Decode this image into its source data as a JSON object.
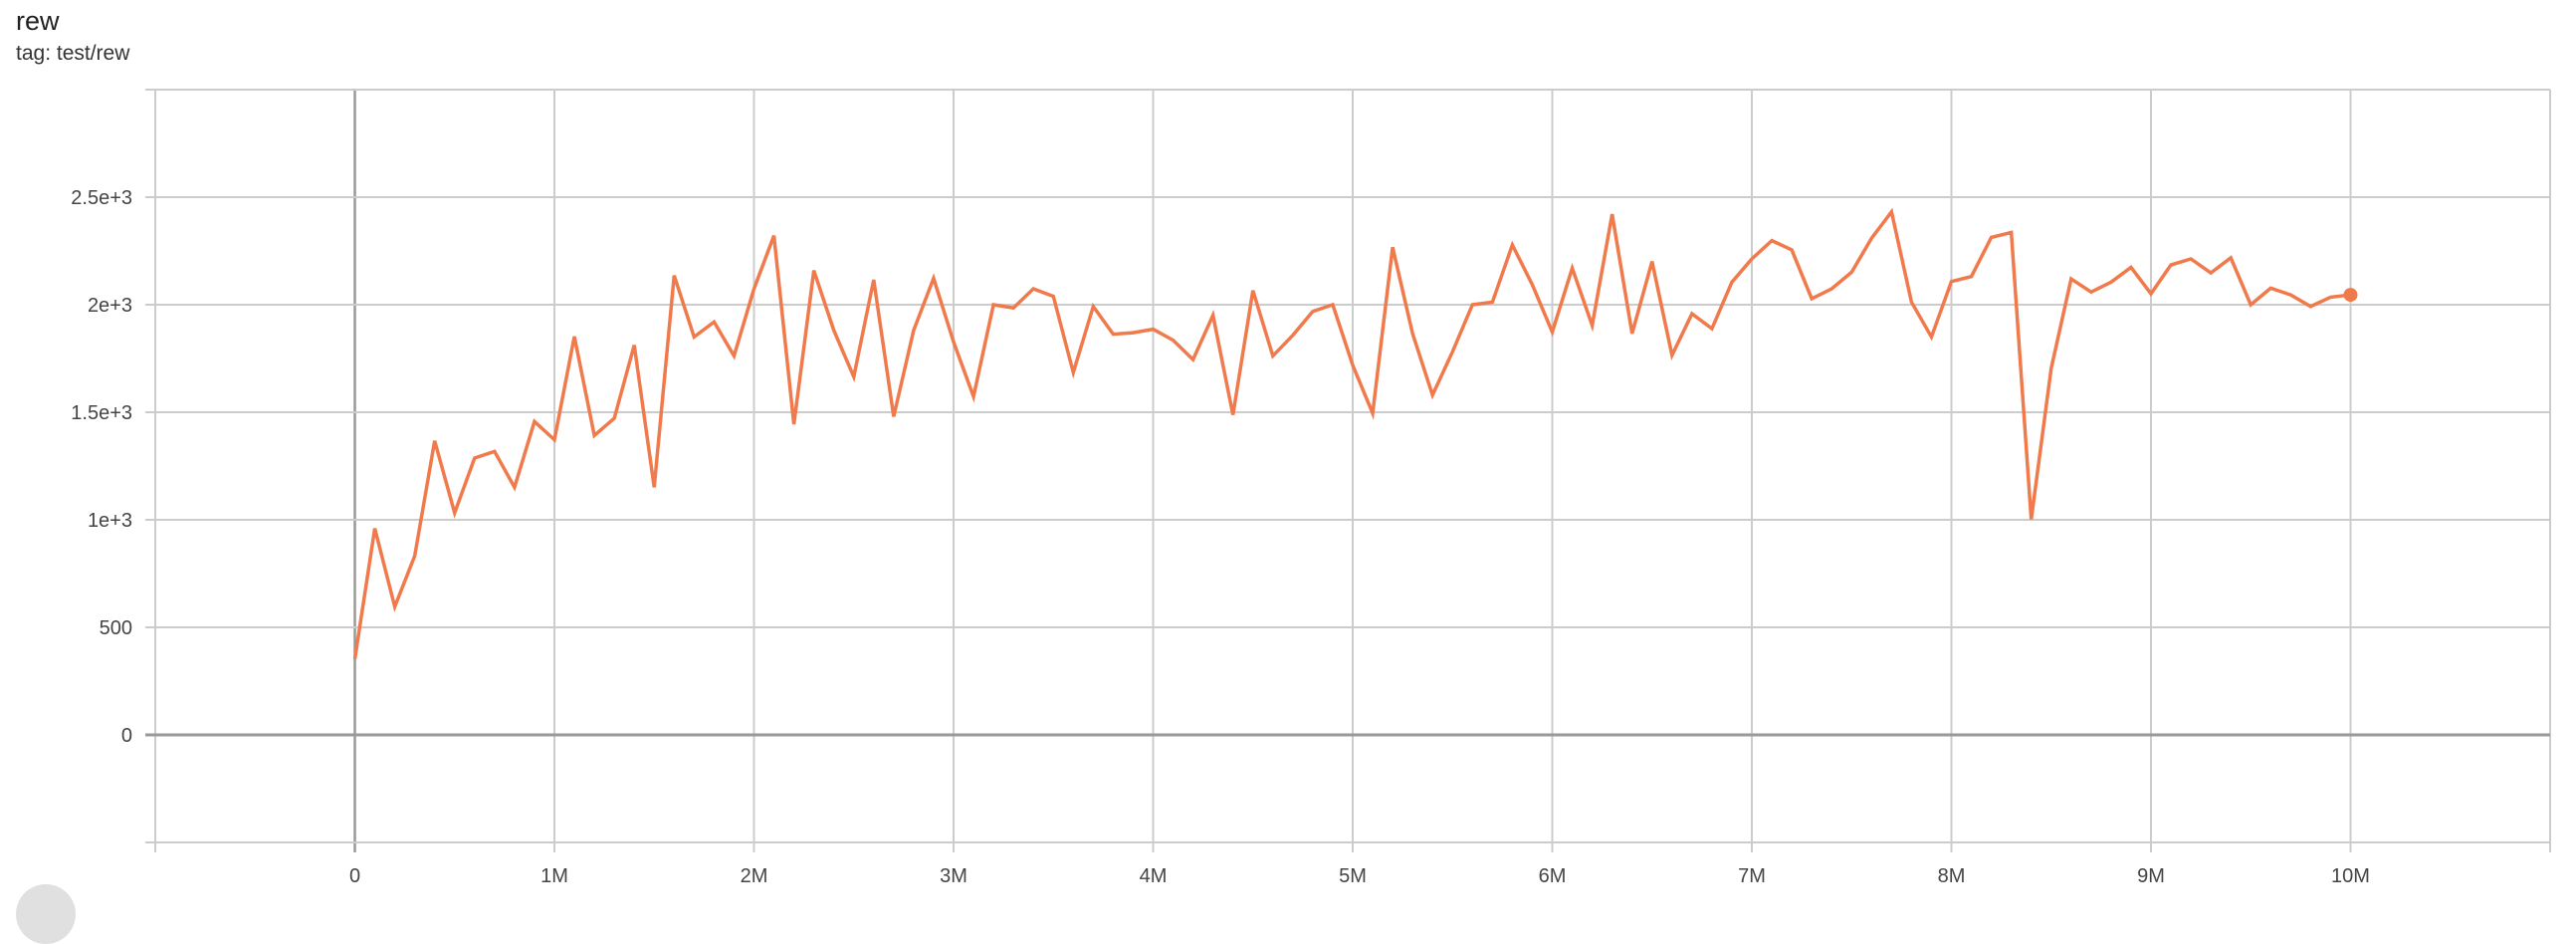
{
  "card": {
    "title": "rew",
    "subtitle": "tag: test/rew"
  },
  "chart_data": {
    "type": "line",
    "title": "rew",
    "xlabel": "",
    "ylabel": "",
    "xlim": [
      -1000000,
      11000000
    ],
    "ylim": [
      -500,
      3000
    ],
    "grid": true,
    "x_ticks": [
      {
        "v": 0,
        "label": "0"
      },
      {
        "v": 1000000,
        "label": "1M"
      },
      {
        "v": 2000000,
        "label": "2M"
      },
      {
        "v": 3000000,
        "label": "3M"
      },
      {
        "v": 4000000,
        "label": "4M"
      },
      {
        "v": 5000000,
        "label": "5M"
      },
      {
        "v": 6000000,
        "label": "6M"
      },
      {
        "v": 7000000,
        "label": "7M"
      },
      {
        "v": 8000000,
        "label": "8M"
      },
      {
        "v": 9000000,
        "label": "9M"
      },
      {
        "v": 10000000,
        "label": "10M"
      }
    ],
    "y_ticks": [
      {
        "v": 0,
        "label": "0"
      },
      {
        "v": 500,
        "label": "500"
      },
      {
        "v": 1000,
        "label": "1e+3"
      },
      {
        "v": 1500,
        "label": "1.5e+3"
      },
      {
        "v": 2000,
        "label": "2e+3"
      },
      {
        "v": 2500,
        "label": "2.5e+3"
      }
    ],
    "color": "#f07a4c",
    "x_step": 100000,
    "series": [
      {
        "values": [
          353,
          960,
          596,
          832,
          1367,
          1032,
          1287,
          1318,
          1151,
          1457,
          1372,
          1852,
          1392,
          1472,
          1812,
          1151,
          2136,
          1850,
          1920,
          1762,
          2074,
          2321,
          1444,
          2159,
          1881,
          1665,
          2116,
          1480,
          1881,
          2123,
          1827,
          1573,
          2000,
          1985,
          2074,
          2039,
          1685,
          1992,
          1863,
          1870,
          1886,
          1835,
          1745,
          1951,
          1488,
          2066,
          1762,
          1858,
          1969,
          2000,
          1719,
          1495,
          2267,
          1866,
          1580,
          1781,
          2000,
          2012,
          2278,
          2093,
          1873,
          2170,
          1904,
          2421,
          1866,
          2201,
          1765,
          1958,
          1889,
          2105,
          2213,
          2298,
          2255,
          2028,
          2074,
          2151,
          2309,
          2432,
          2012,
          1850,
          2108,
          2131,
          2313,
          2336,
          1002,
          1704,
          2120,
          2059,
          2105,
          2174,
          2051,
          2185,
          2213,
          2148,
          2218,
          2000,
          2077,
          2046,
          1992,
          2035,
          2046
        ]
      }
    ]
  }
}
